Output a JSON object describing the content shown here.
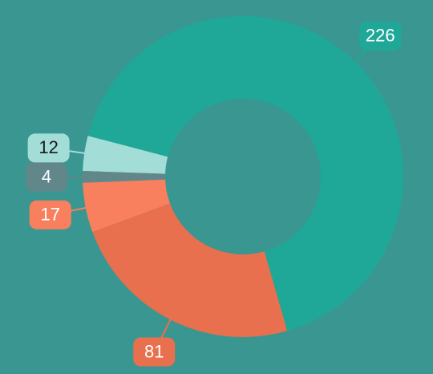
{
  "chart_data": {
    "type": "pie",
    "donut": true,
    "values": [
      226,
      12,
      4,
      17,
      81
    ],
    "colors": [
      "#1fa898",
      "#a3ddd7",
      "#62878a",
      "#f8805e",
      "#e8704e"
    ],
    "label_text_colors": [
      "#ffffff",
      "#1a1a1a",
      "#ffffff",
      "#ffffff",
      "#ffffff"
    ]
  }
}
